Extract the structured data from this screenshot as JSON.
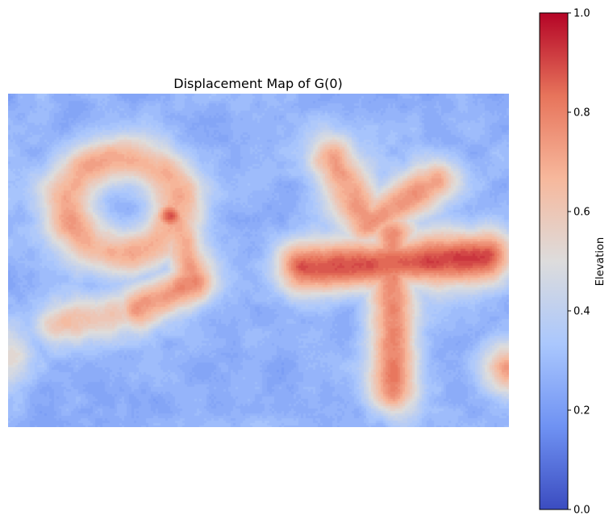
{
  "chart_data": {
    "type": "heatmap",
    "title": "Displacement Map of G(0)",
    "xlabel": "",
    "ylabel": "",
    "axes_visible": false,
    "grid": false,
    "colormap": "coolwarm",
    "colormap_stops": [
      "#3b4cc0",
      "#6f92f3",
      "#aac7fd",
      "#dddcdc",
      "#f7b89c",
      "#e7745b",
      "#b40426"
    ],
    "background_level": 0.35,
    "blob_features": [
      {
        "feature": "glyph '9' loop ring",
        "peak_elevation": 0.78
      },
      {
        "feature": "glyph '9' hotspot",
        "peak_elevation": 0.97
      },
      {
        "feature": "glyph '9' stem",
        "peak_elevation": 0.8
      },
      {
        "feature": "glyph '9' tail",
        "peak_elevation": 0.85
      },
      {
        "feature": "glyph '9' tail end",
        "peak_elevation": 0.7
      },
      {
        "feature": "glyph 'F' crossbar",
        "peak_elevation": 0.98
      },
      {
        "feature": "glyph 'F' vertical stroke",
        "peak_elevation": 0.88
      },
      {
        "feature": "glyph 'F' upper arm",
        "peak_elevation": 0.82
      },
      {
        "feature": "right edge spot",
        "peak_elevation": 0.8
      },
      {
        "feature": "left edge spot",
        "peak_elevation": 0.6
      }
    ],
    "colorbar": {
      "label": "Elevation",
      "range": [
        0,
        1
      ],
      "ticks": [
        "0.0",
        "0.2",
        "0.4",
        "0.6",
        "0.8",
        "1.0"
      ],
      "tick_values": [
        0,
        0.2,
        0.4,
        0.6,
        0.8,
        1.0
      ]
    }
  }
}
